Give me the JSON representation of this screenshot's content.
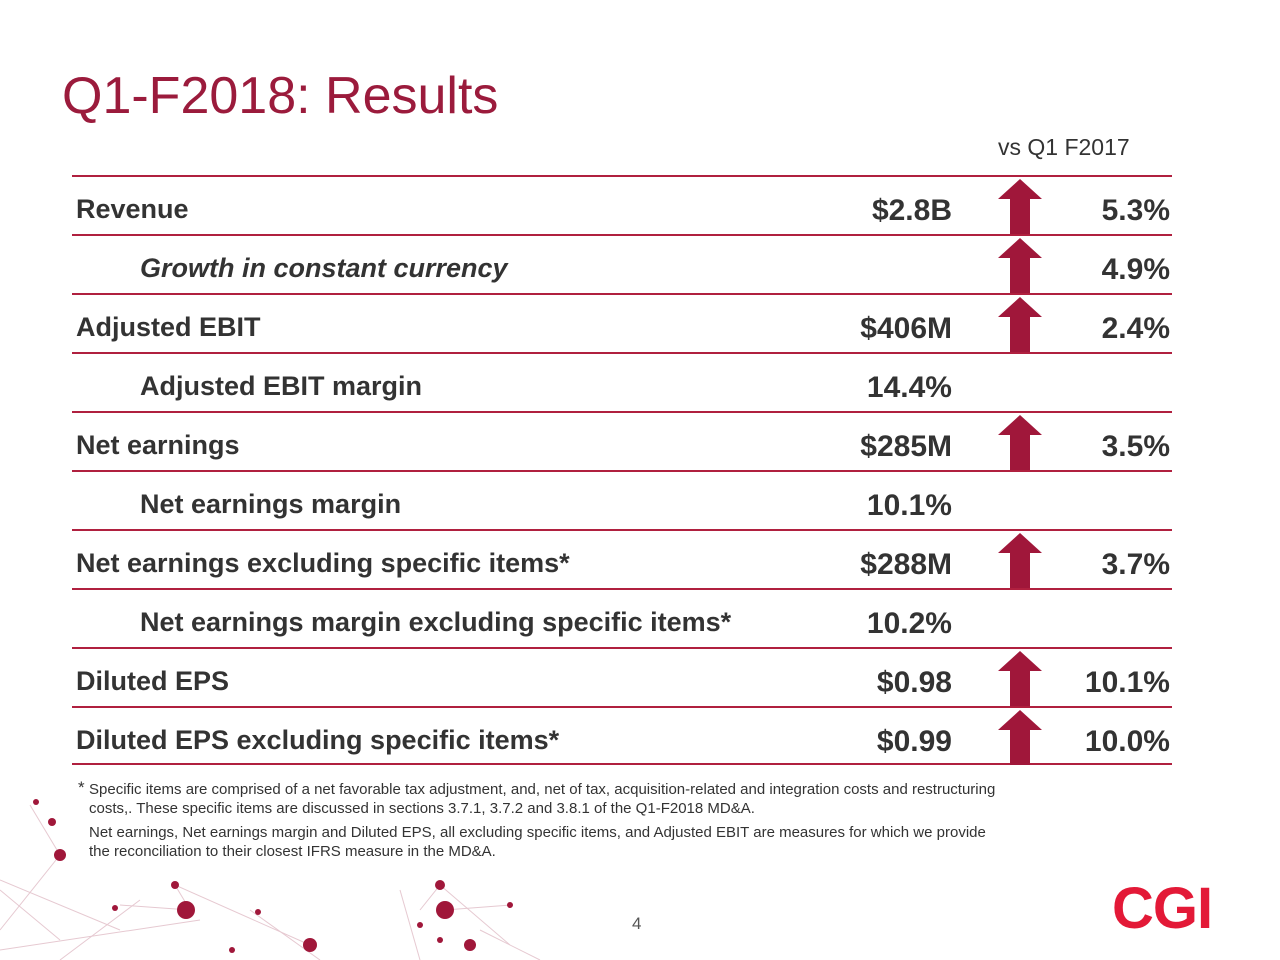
{
  "slide": {
    "title": "Q1-F2018: Results",
    "comparison_header": "vs Q1 F2017",
    "page_number": "4",
    "logo_text": "CGI",
    "accent_color": "#9b1b3c",
    "logo_color": "#e31937"
  },
  "rows": [
    {
      "label": "Revenue",
      "value": "$2.8B",
      "change": "5.3%",
      "arrow": "up-arrow-icon"
    },
    {
      "label": "Growth in constant currency",
      "value": "",
      "change": "4.9%",
      "arrow": "up-arrow-icon"
    },
    {
      "label": "Adjusted EBIT",
      "value": "$406M",
      "change": "2.4%",
      "arrow": "up-arrow-icon"
    },
    {
      "label": "Adjusted EBIT margin",
      "value": "14.4%",
      "change": ""
    },
    {
      "label": "Net earnings",
      "value": "$285M",
      "change": "3.5%",
      "arrow": "up-arrow-icon"
    },
    {
      "label": "Net earnings margin",
      "value": "10.1%",
      "change": ""
    },
    {
      "label": "Net earnings excluding specific items*",
      "value": "$288M",
      "change": "3.7%",
      "arrow": "up-arrow-icon"
    },
    {
      "label": "Net earnings margin excluding specific items*",
      "value": "10.2%",
      "change": ""
    },
    {
      "label": "Diluted EPS",
      "value": "$0.98",
      "change": "10.1%",
      "arrow": "up-arrow-icon"
    },
    {
      "label": "Diluted EPS excluding specific items*",
      "value": "$0.99",
      "change": "10.0%",
      "arrow": "up-arrow-icon"
    }
  ],
  "footnote": {
    "star": "*",
    "line1": "Specific items are comprised of a net favorable tax adjustment, and, net of tax, acquisition-related and integration costs and restructuring",
    "line2": "costs,. These specific items are discussed in sections 3.7.1, 3.7.2 and 3.8.1 of the Q1-F2018 MD&A.",
    "line3": "Net earnings, Net earnings margin and Diluted EPS, all excluding specific items, and Adjusted EBIT are measures for which we provide",
    "line4": "the reconciliation to their closest IFRS measure in the MD&A."
  }
}
